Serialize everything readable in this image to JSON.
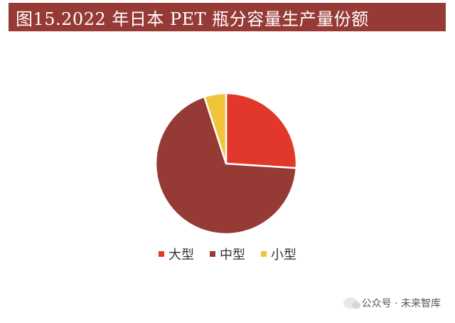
{
  "header": {
    "title": "图15.2022 年日本 PET 瓶分容量生产量份额"
  },
  "chart_data": {
    "type": "pie",
    "title": "图15.2022 年日本 PET 瓶分容量生产量份额",
    "start_angle_deg": 0,
    "direction": "clockwise",
    "legend_position": "bottom",
    "slices": [
      {
        "label": "大型",
        "value": 26,
        "color": "#e2372b"
      },
      {
        "label": "中型",
        "value": 69,
        "color": "#963a35"
      },
      {
        "label": "小型",
        "value": 5,
        "color": "#f2c43a"
      }
    ]
  },
  "watermark": {
    "text": "公众号 · 未来智库"
  }
}
